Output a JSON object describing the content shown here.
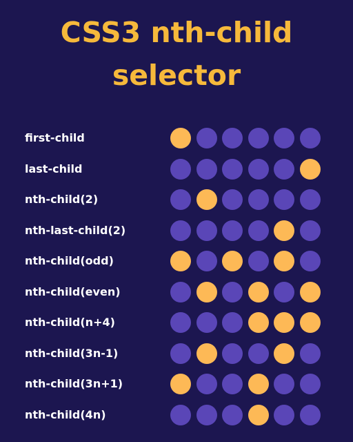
{
  "title": {
    "line1": "CSS3 nth-child",
    "line2": "selector"
  },
  "colors": {
    "background": "#1c1650",
    "title": "#f6b93b",
    "active_dot": "#fdb956",
    "inactive_dot": "#5a46b7",
    "label": "#ffffff"
  },
  "dots_per_row": 6,
  "rows": [
    {
      "label": "first-child",
      "active": [
        1
      ]
    },
    {
      "label": "last-child",
      "active": [
        6
      ]
    },
    {
      "label": "nth-child(2)",
      "active": [
        2
      ]
    },
    {
      "label": "nth-last-child(2)",
      "active": [
        5
      ]
    },
    {
      "label": "nth-child(odd)",
      "active": [
        1,
        3,
        5
      ]
    },
    {
      "label": "nth-child(even)",
      "active": [
        2,
        4,
        6
      ]
    },
    {
      "label": "nth-child(n+4)",
      "active": [
        4,
        5,
        6
      ]
    },
    {
      "label": "nth-child(3n-1)",
      "active": [
        2,
        5
      ]
    },
    {
      "label": "nth-child(3n+1)",
      "active": [
        1,
        4
      ]
    },
    {
      "label": "nth-child(4n)",
      "active": [
        4
      ]
    }
  ]
}
